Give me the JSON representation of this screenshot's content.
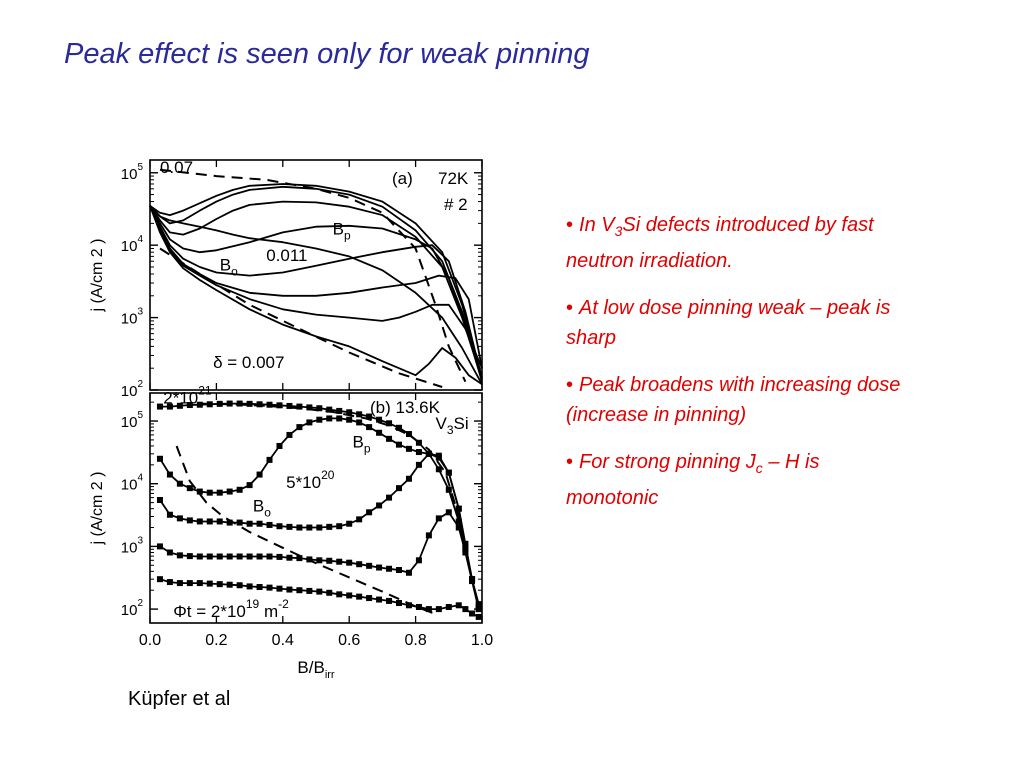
{
  "title": "Peak effect is seen only for weak pinning",
  "caption": "Küpfer et al",
  "bullets": [
    {
      "parts": [
        {
          "t": "In V"
        },
        {
          "sub": "3"
        },
        {
          "t": "Si defects introduced by fast neutron irradiation."
        }
      ]
    },
    {
      "parts": [
        {
          "t": "At low dose pinning weak – peak is sharp"
        }
      ]
    },
    {
      "parts": [
        {
          "t": "Peak broadens with increasing dose (increase  in pinning)"
        }
      ]
    },
    {
      "parts": [
        {
          "t": "For strong pinning J"
        },
        {
          "sub": "c"
        },
        {
          "t": " – H is monotonic"
        }
      ]
    }
  ],
  "colors": {
    "title": "#2a2a9a",
    "bullets": "#e00000",
    "plot": "#000000"
  },
  "chart_data": [
    {
      "type": "line",
      "panel_label": "(a)",
      "temperature": "72K",
      "sample": "# 2",
      "xlim": [
        0,
        1.0
      ],
      "ylim": [
        100,
        150000
      ],
      "yscale": "log",
      "yticks": [
        {
          "v": 100,
          "m": "2"
        },
        {
          "v": 1000,
          "m": "3"
        },
        {
          "v": 10000,
          "m": "4"
        },
        {
          "v": 100000,
          "m": "5"
        }
      ],
      "ylabel": "j (A/cm 2 )",
      "grid": false,
      "series": [
        {
          "x": [
            0.0,
            0.03,
            0.06,
            0.1,
            0.15,
            0.2,
            0.25,
            0.3,
            0.4,
            0.5,
            0.6,
            0.7,
            0.8,
            0.88,
            0.94,
            1.0
          ],
          "y": [
            35000,
            25000,
            22000,
            20000,
            18000,
            16000,
            14000,
            12500,
            11000,
            9000,
            7000,
            4500,
            2200,
            1000,
            380,
            120
          ]
        },
        {
          "x": [
            0.0,
            0.03,
            0.06,
            0.1,
            0.15,
            0.2,
            0.25,
            0.3,
            0.4,
            0.5,
            0.6,
            0.7,
            0.8,
            0.88,
            0.94,
            1.0
          ],
          "y": [
            35000,
            28000,
            26000,
            30000,
            38000,
            48000,
            58000,
            66000,
            70000,
            66000,
            55000,
            40000,
            20000,
            8000,
            1500,
            150
          ]
        },
        {
          "x": [
            0.0,
            0.03,
            0.06,
            0.1,
            0.15,
            0.2,
            0.25,
            0.3,
            0.4,
            0.5,
            0.6,
            0.7,
            0.8,
            0.88,
            0.94,
            1.0
          ],
          "y": [
            35000,
            25000,
            20000,
            22000,
            30000,
            40000,
            50000,
            58000,
            64000,
            60000,
            50000,
            34000,
            16000,
            6000,
            1200,
            150
          ]
        },
        {
          "x": [
            0.0,
            0.03,
            0.06,
            0.1,
            0.15,
            0.2,
            0.25,
            0.3,
            0.4,
            0.5,
            0.6,
            0.7,
            0.8,
            0.88,
            0.94,
            1.0
          ],
          "y": [
            35000,
            22000,
            15000,
            14000,
            17000,
            23000,
            30000,
            36000,
            40000,
            39000,
            34000,
            26000,
            13000,
            5000,
            1000,
            140
          ]
        },
        {
          "x": [
            0.0,
            0.03,
            0.06,
            0.1,
            0.15,
            0.2,
            0.3,
            0.4,
            0.5,
            0.6,
            0.7,
            0.8,
            0.85,
            0.9,
            0.95,
            1.0
          ],
          "y": [
            35000,
            20000,
            12000,
            9000,
            8000,
            8500,
            11000,
            15000,
            18000,
            18500,
            17000,
            12000,
            9000,
            3500,
            800,
            130
          ]
        },
        {
          "x": [
            0.0,
            0.03,
            0.06,
            0.1,
            0.15,
            0.2,
            0.3,
            0.4,
            0.5,
            0.6,
            0.7,
            0.8,
            0.85,
            0.9,
            0.95,
            1.0
          ],
          "y": [
            35000,
            18000,
            10000,
            6500,
            5000,
            4200,
            3800,
            4200,
            5200,
            6500,
            8000,
            9500,
            10000,
            6000,
            1200,
            140
          ]
        },
        {
          "x": [
            0.0,
            0.03,
            0.06,
            0.1,
            0.15,
            0.2,
            0.3,
            0.4,
            0.5,
            0.6,
            0.7,
            0.8,
            0.87,
            0.92,
            0.96,
            1.0
          ],
          "y": [
            35000,
            17000,
            9000,
            5500,
            4000,
            3000,
            2200,
            2000,
            2000,
            2200,
            2600,
            3000,
            3800,
            3500,
            1800,
            200
          ]
        },
        {
          "x": [
            0.0,
            0.03,
            0.06,
            0.1,
            0.15,
            0.2,
            0.3,
            0.4,
            0.5,
            0.6,
            0.7,
            0.75,
            0.8,
            0.85,
            0.9,
            0.95,
            1.0
          ],
          "y": [
            35000,
            16000,
            8500,
            5200,
            3800,
            2800,
            1800,
            1300,
            1100,
            1000,
            900,
            1000,
            1200,
            1500,
            1500,
            700,
            200
          ]
        },
        {
          "x": [
            0.0,
            0.03,
            0.06,
            0.1,
            0.15,
            0.2,
            0.3,
            0.4,
            0.5,
            0.6,
            0.7,
            0.75,
            0.8,
            0.84,
            0.88,
            0.92,
            0.96,
            1.0
          ],
          "y": [
            35000,
            15000,
            8000,
            4800,
            3300,
            2400,
            1300,
            800,
            550,
            400,
            250,
            200,
            160,
            230,
            380,
            280,
            160,
            120
          ]
        },
        {
          "x": [
            0.03,
            0.2,
            0.35,
            0.5,
            0.6,
            0.7,
            0.8,
            0.86,
            0.9,
            0.95
          ],
          "y": [
            110000,
            90000,
            80000,
            60000,
            45000,
            28000,
            9000,
            1500,
            400,
            130
          ],
          "style": "dashed"
        },
        {
          "x": [
            0.03,
            0.15,
            0.3,
            0.45,
            0.6,
            0.75,
            0.88
          ],
          "y": [
            9000,
            4000,
            1500,
            700,
            330,
            170,
            110
          ],
          "style": "dashed"
        }
      ],
      "annotations": [
        {
          "text": "0.07",
          "x": 0.03,
          "y": 100000
        },
        {
          "text": "B",
          "sub": "p",
          "x": 0.55,
          "y": 14000
        },
        {
          "text": "0.011",
          "x": 0.35,
          "y": 6000
        },
        {
          "text": "B",
          "sub": "o",
          "x": 0.21,
          "y": 4500
        },
        {
          "text": "δ = 0.007",
          "x": 0.19,
          "y": 200
        }
      ]
    },
    {
      "type": "scatter",
      "panel_label": "(b)",
      "temperature": "13.6K",
      "material": "V3Si",
      "xlim": [
        0,
        1.0
      ],
      "ylim": [
        60,
        280000
      ],
      "yscale": "log",
      "yticks": [
        {
          "v": 100,
          "m": "2"
        },
        {
          "v": 1000,
          "m": "3"
        },
        {
          "v": 10000,
          "m": "4"
        },
        {
          "v": 100000,
          "m": "5"
        }
      ],
      "xticks": [
        0.0,
        0.2,
        0.4,
        0.6,
        0.8,
        "1.0"
      ],
      "ylabel": "j (A/cm 2 )",
      "xlabel": "B/B",
      "xlabel_sub": "irr",
      "grid": false,
      "series": [
        {
          "x": [
            0.03,
            0.06,
            0.09,
            0.12,
            0.15,
            0.18,
            0.21,
            0.24,
            0.27,
            0.3,
            0.33,
            0.36,
            0.39,
            0.42,
            0.45,
            0.48,
            0.51,
            0.54,
            0.57,
            0.6,
            0.63,
            0.66,
            0.69,
            0.72,
            0.75,
            0.78,
            0.81,
            0.84,
            0.87,
            0.9,
            0.93,
            0.95,
            0.97,
            0.99
          ],
          "y": [
            170000,
            170000,
            175000,
            180000,
            182000,
            185000,
            188000,
            190000,
            190000,
            188000,
            185000,
            182000,
            178000,
            174000,
            170000,
            165000,
            160000,
            152000,
            145000,
            138000,
            128000,
            118000,
            105000,
            92000,
            78000,
            62000,
            45000,
            30000,
            17000,
            8000,
            2500,
            900,
            300,
            120
          ]
        },
        {
          "x": [
            0.03,
            0.06,
            0.09,
            0.12,
            0.15,
            0.18,
            0.21,
            0.24,
            0.27,
            0.3,
            0.33,
            0.36,
            0.39,
            0.42,
            0.45,
            0.48,
            0.51,
            0.54,
            0.57,
            0.6,
            0.63,
            0.66,
            0.69,
            0.72,
            0.75,
            0.78,
            0.81,
            0.84,
            0.87,
            0.9,
            0.93,
            0.95,
            0.97,
            0.99
          ],
          "y": [
            25000,
            14000,
            10000,
            8500,
            7500,
            7200,
            7200,
            7500,
            8000,
            9500,
            14000,
            24000,
            40000,
            60000,
            80000,
            95000,
            105000,
            110000,
            110000,
            105000,
            95000,
            80000,
            65000,
            52000,
            42000,
            36000,
            32000,
            30000,
            26000,
            15000,
            4000,
            1000,
            300,
            110
          ]
        },
        {
          "x": [
            0.03,
            0.06,
            0.09,
            0.12,
            0.15,
            0.18,
            0.21,
            0.24,
            0.27,
            0.3,
            0.33,
            0.36,
            0.39,
            0.42,
            0.45,
            0.48,
            0.51,
            0.54,
            0.57,
            0.6,
            0.63,
            0.66,
            0.69,
            0.72,
            0.75,
            0.78,
            0.81,
            0.84,
            0.87,
            0.9,
            0.93,
            0.95,
            0.97,
            0.99
          ],
          "y": [
            5500,
            3200,
            2800,
            2600,
            2500,
            2500,
            2500,
            2400,
            2400,
            2300,
            2300,
            2200,
            2100,
            2050,
            2000,
            2000,
            2000,
            2050,
            2100,
            2300,
            2700,
            3500,
            4500,
            6000,
            8500,
            12000,
            20000,
            30000,
            28000,
            15000,
            4000,
            1100,
            300,
            100
          ]
        },
        {
          "x": [
            0.03,
            0.06,
            0.09,
            0.12,
            0.15,
            0.18,
            0.21,
            0.24,
            0.27,
            0.3,
            0.33,
            0.36,
            0.39,
            0.42,
            0.45,
            0.48,
            0.51,
            0.54,
            0.57,
            0.6,
            0.63,
            0.66,
            0.69,
            0.72,
            0.75,
            0.78,
            0.81,
            0.84,
            0.87,
            0.9,
            0.93,
            0.95,
            0.97,
            0.99
          ],
          "y": [
            1000,
            800,
            720,
            700,
            690,
            690,
            690,
            690,
            690,
            690,
            690,
            690,
            680,
            660,
            650,
            620,
            600,
            590,
            570,
            550,
            520,
            490,
            460,
            440,
            420,
            380,
            600,
            1500,
            2800,
            3500,
            2000,
            800,
            280,
            100
          ]
        },
        {
          "x": [
            0.03,
            0.06,
            0.09,
            0.12,
            0.15,
            0.18,
            0.21,
            0.24,
            0.27,
            0.3,
            0.33,
            0.36,
            0.39,
            0.42,
            0.45,
            0.48,
            0.51,
            0.54,
            0.57,
            0.6,
            0.63,
            0.66,
            0.69,
            0.72,
            0.75,
            0.78,
            0.81,
            0.84,
            0.87,
            0.9,
            0.93,
            0.95,
            0.97,
            0.99
          ],
          "y": [
            300,
            270,
            260,
            260,
            260,
            255,
            250,
            245,
            240,
            230,
            225,
            220,
            212,
            205,
            200,
            195,
            190,
            182,
            172,
            165,
            158,
            150,
            142,
            135,
            125,
            115,
            108,
            100,
            100,
            108,
            115,
            100,
            85,
            75
          ]
        },
        {
          "x": [
            0.15,
            0.25,
            0.35,
            0.45,
            0.55,
            0.65,
            0.72,
            0.78,
            0.84,
            0.89,
            0.93,
            0.97
          ],
          "y": [
            190000,
            185000,
            175000,
            160000,
            140000,
            110000,
            85000,
            60000,
            35000,
            15000,
            3000,
            300
          ],
          "style": "dashed"
        },
        {
          "x": [
            0.08,
            0.12,
            0.17,
            0.22,
            0.3,
            0.4,
            0.5,
            0.6,
            0.7,
            0.8,
            0.87
          ],
          "y": [
            40000,
            11000,
            5000,
            3000,
            1700,
            950,
            540,
            320,
            190,
            110,
            80
          ],
          "style": "dashed"
        }
      ],
      "annotations": [
        {
          "text": "2*10",
          "sup": "21",
          "x": 0.04,
          "y": 190000
        },
        {
          "text": "B",
          "sub": "p",
          "x": 0.61,
          "y": 38000
        },
        {
          "text": "V",
          "sub": "3",
          "after": "Si",
          "x": 0.86,
          "y": 75000
        },
        {
          "text": "5*10",
          "sup": "20",
          "x": 0.41,
          "y": 8500
        },
        {
          "text": "B",
          "sub": "o",
          "x": 0.31,
          "y": 3600
        },
        {
          "text": "Φt = 2*10",
          "sup": "19",
          "after": " m",
          "sup2": "-2",
          "x": 0.07,
          "y": 75
        }
      ]
    }
  ]
}
